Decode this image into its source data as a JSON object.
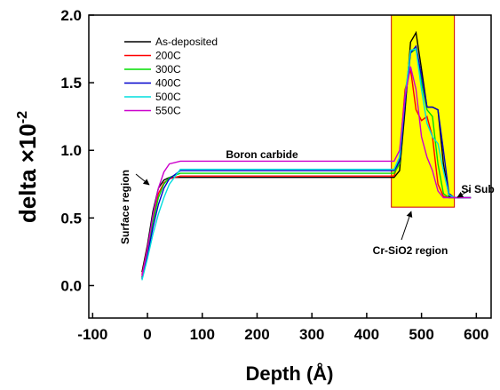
{
  "chart_data": {
    "type": "line",
    "xlabel": "Depth (Å)",
    "ylabel": {
      "text": "delta ×10",
      "superscript": "-2"
    },
    "x": [
      -10,
      0,
      10,
      20,
      30,
      40,
      60,
      100,
      200,
      300,
      400,
      450,
      460,
      470,
      480,
      490,
      500,
      510,
      520,
      530,
      540,
      550,
      560,
      590
    ],
    "series": [
      {
        "name": "As-deposited",
        "color": "#000000",
        "values": [
          0.1,
          0.3,
          0.55,
          0.72,
          0.78,
          0.8,
          0.8,
          0.8,
          0.8,
          0.8,
          0.8,
          0.8,
          0.85,
          1.3,
          1.8,
          1.87,
          1.6,
          1.32,
          1.32,
          1.3,
          0.9,
          0.66,
          0.65,
          0.65
        ]
      },
      {
        "name": "200C",
        "color": "#ff0000",
        "values": [
          0.08,
          0.28,
          0.5,
          0.68,
          0.76,
          0.79,
          0.81,
          0.81,
          0.81,
          0.81,
          0.81,
          0.81,
          0.95,
          1.45,
          1.6,
          1.3,
          1.22,
          1.25,
          1.1,
          0.75,
          0.66,
          0.65,
          0.65,
          0.65
        ]
      },
      {
        "name": "300C",
        "color": "#00dd00",
        "values": [
          0.06,
          0.25,
          0.47,
          0.65,
          0.75,
          0.8,
          0.83,
          0.83,
          0.83,
          0.83,
          0.83,
          0.83,
          0.9,
          1.4,
          1.72,
          1.75,
          1.5,
          1.3,
          1.25,
          0.9,
          0.68,
          0.65,
          0.65,
          0.65
        ]
      },
      {
        "name": "400C",
        "color": "#0000cc",
        "values": [
          0.05,
          0.22,
          0.43,
          0.6,
          0.72,
          0.79,
          0.85,
          0.85,
          0.85,
          0.85,
          0.85,
          0.85,
          0.92,
          1.35,
          1.72,
          1.77,
          1.55,
          1.32,
          1.32,
          1.3,
          1.0,
          0.68,
          0.65,
          0.65
        ]
      },
      {
        "name": "500C",
        "color": "#00dddd",
        "values": [
          0.04,
          0.2,
          0.38,
          0.53,
          0.65,
          0.75,
          0.86,
          0.86,
          0.86,
          0.86,
          0.86,
          0.86,
          0.95,
          1.4,
          1.74,
          1.75,
          1.45,
          1.2,
          1.1,
          1.05,
          0.85,
          0.67,
          0.65,
          0.65
        ]
      },
      {
        "name": "550C",
        "color": "#cc00cc",
        "values": [
          0.07,
          0.27,
          0.52,
          0.72,
          0.84,
          0.9,
          0.92,
          0.92,
          0.92,
          0.92,
          0.92,
          0.92,
          1.0,
          1.4,
          1.62,
          1.45,
          1.1,
          0.95,
          0.85,
          0.7,
          0.65,
          0.65,
          0.65,
          0.65
        ]
      }
    ],
    "xlim": [
      -107,
      627
    ],
    "xticks": [
      -100,
      0,
      100,
      200,
      300,
      400,
      500,
      600
    ],
    "ylim": [
      -0.24,
      2.0
    ],
    "yticks": [
      {
        "value": 0,
        "label": "0.0"
      },
      0.5,
      {
        "value": 1,
        "label": "1.0"
      },
      1.5,
      {
        "value": 2,
        "label": "2.0"
      }
    ],
    "grid": false,
    "legend": "upper left",
    "highlight": {
      "xlim": [
        445,
        560
      ],
      "ylim": [
        0.58,
        2.0
      ],
      "color": "#ffff00",
      "edgecolor": "#cc0000"
    },
    "annotations": [
      "Boron carbide",
      "Surface region",
      "Cr-SiO2 region",
      "Si Sub"
    ]
  }
}
